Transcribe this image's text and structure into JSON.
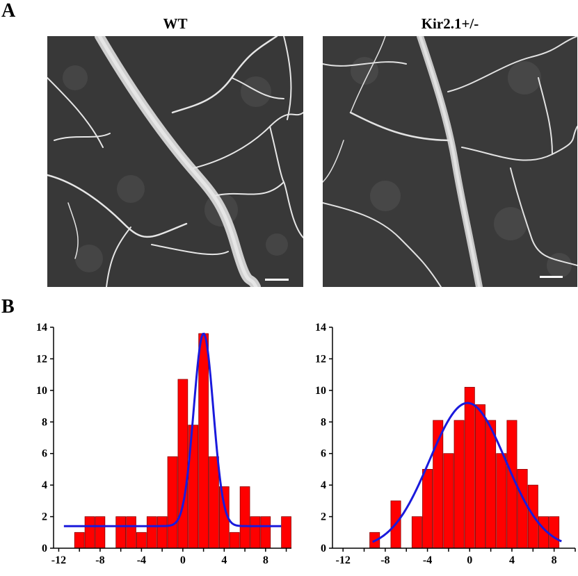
{
  "panel_a": {
    "label": "A",
    "images": [
      {
        "title": "WT"
      },
      {
        "title": "Kir2.1+/-"
      }
    ]
  },
  "panel_b": {
    "label": "B"
  },
  "colors": {
    "bar_fill": "#ff0000",
    "bar_stroke": "#8b0000",
    "fit_line": "#1a1adc",
    "micrograph_bg": "#3a3a3a",
    "vessel": "#e8e8e8"
  },
  "chart_data": [
    {
      "type": "bar",
      "panel": "WT",
      "xlim": [
        -12.5,
        10.5
      ],
      "ylim": [
        0,
        14
      ],
      "xticks": [
        -12,
        -8,
        -4,
        0,
        4,
        8
      ],
      "yticks": [
        0,
        2,
        4,
        6,
        8,
        10,
        12,
        14
      ],
      "bin_width": 1,
      "bins": [
        {
          "x": -10,
          "y": 1
        },
        {
          "x": -9,
          "y": 2
        },
        {
          "x": -8,
          "y": 2
        },
        {
          "x": -6,
          "y": 2
        },
        {
          "x": -5,
          "y": 2
        },
        {
          "x": -4,
          "y": 1
        },
        {
          "x": -3,
          "y": 2
        },
        {
          "x": -2,
          "y": 2
        },
        {
          "x": -1,
          "y": 5.8
        },
        {
          "x": 0,
          "y": 10.7
        },
        {
          "x": 1,
          "y": 7.8
        },
        {
          "x": 2,
          "y": 13.6
        },
        {
          "x": 3,
          "y": 5.8
        },
        {
          "x": 4,
          "y": 3.9
        },
        {
          "x": 5,
          "y": 1
        },
        {
          "x": 6,
          "y": 3.9
        },
        {
          "x": 7,
          "y": 2
        },
        {
          "x": 8,
          "y": 2
        },
        {
          "x": 10,
          "y": 2
        }
      ],
      "fit": {
        "type": "gaussian",
        "baseline": 1.4,
        "amplitude": 12.2,
        "center": 2.0,
        "sigma": 0.95,
        "x_range": [
          -11.5,
          9.5
        ]
      }
    },
    {
      "type": "bar",
      "panel": "Kir2.1+/-",
      "xlim": [
        -13,
        10
      ],
      "ylim": [
        0,
        14
      ],
      "xticks": [
        -12,
        -8,
        -4,
        0,
        4,
        8
      ],
      "yticks": [
        0,
        2,
        4,
        6,
        8,
        10,
        12,
        14
      ],
      "bin_width": 1,
      "bins": [
        {
          "x": -9,
          "y": 1
        },
        {
          "x": -7,
          "y": 3
        },
        {
          "x": -5,
          "y": 2
        },
        {
          "x": -4,
          "y": 5
        },
        {
          "x": -3,
          "y": 8.1
        },
        {
          "x": -2,
          "y": 6
        },
        {
          "x": -1,
          "y": 8.1
        },
        {
          "x": 0,
          "y": 10.2
        },
        {
          "x": 1,
          "y": 9.1
        },
        {
          "x": 2,
          "y": 8.1
        },
        {
          "x": 3,
          "y": 6
        },
        {
          "x": 4,
          "y": 8.1
        },
        {
          "x": 5,
          "y": 5
        },
        {
          "x": 6,
          "y": 4
        },
        {
          "x": 7,
          "y": 2
        },
        {
          "x": 8,
          "y": 2
        }
      ],
      "fit": {
        "type": "gaussian",
        "baseline": 0,
        "amplitude": 9.2,
        "center": -0.2,
        "sigma": 3.6,
        "x_range": [
          -9.2,
          8.7
        ]
      }
    }
  ]
}
